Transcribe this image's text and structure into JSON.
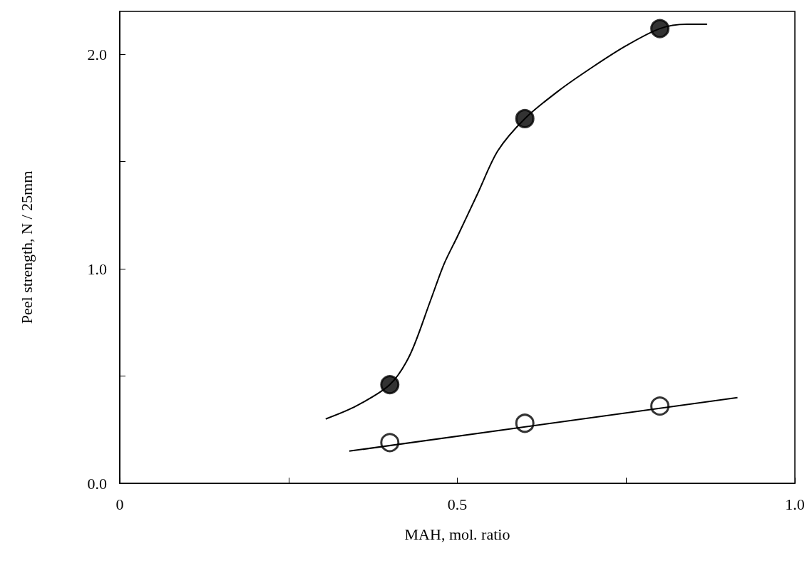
{
  "chart_data": {
    "type": "scatter",
    "xlabel": "MAH, mol. ratio",
    "ylabel": "Peel strength, N / 25mm",
    "xlim": [
      0,
      1.0
    ],
    "xticks": [
      {
        "value": 0,
        "label": "0"
      },
      {
        "value": 0.25,
        "label": null
      },
      {
        "value": 0.5,
        "label": "0.5"
      },
      {
        "value": 0.75,
        "label": null
      },
      {
        "value": 1.0,
        "label": "1.0"
      }
    ],
    "ylim": [
      0,
      2.2
    ],
    "yticks": [
      {
        "value": 0,
        "label": "0.0"
      },
      {
        "value": 0.5,
        "label": null
      },
      {
        "value": 1.0,
        "label": "1.0"
      },
      {
        "value": 1.5,
        "label": null
      },
      {
        "value": 2.0,
        "label": "2.0"
      }
    ],
    "grid": false,
    "marker": "circle",
    "series": [
      {
        "type": "line",
        "color": "#000000",
        "x": [
          0.305,
          0.35,
          0.4,
          0.43,
          0.46,
          0.48,
          0.5,
          0.53,
          0.56,
          0.6,
          0.65,
          0.7,
          0.75,
          0.8,
          0.84,
          0.87
        ],
        "values": [
          0.3,
          0.36,
          0.46,
          0.6,
          0.85,
          1.02,
          1.15,
          1.35,
          1.55,
          1.7,
          1.83,
          1.94,
          2.04,
          2.12,
          2.14,
          2.14
        ],
        "marker": "none"
      },
      {
        "type": "line",
        "color": "#000000",
        "x": [
          0.34,
          0.915
        ],
        "values": [
          0.15,
          0.4
        ],
        "marker": "none"
      },
      {
        "color": "#000000",
        "x": [
          0.4,
          0.6,
          0.8
        ],
        "values": [
          0.46,
          1.7,
          2.12
        ]
      },
      {
        "color": "#ffffff",
        "x": [
          0.4,
          0.6,
          0.8
        ],
        "values": [
          0.19,
          0.28,
          0.36
        ]
      }
    ]
  }
}
